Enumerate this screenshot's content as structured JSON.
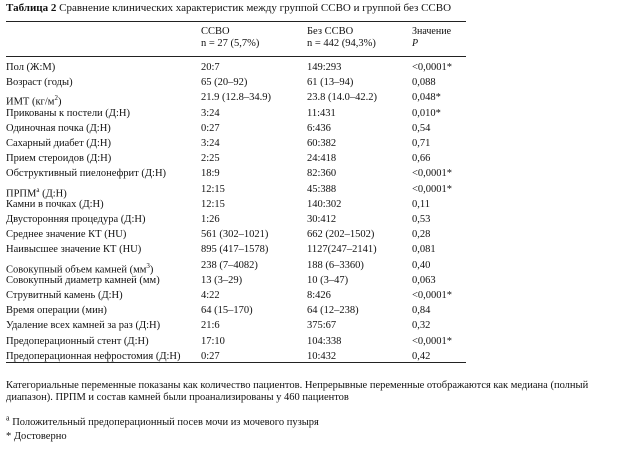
{
  "title": {
    "label": "Таблица 2",
    "text": " Сравнение клинических характеристик между группой ССВО и группой без ССВО"
  },
  "header": {
    "g1_name": "ССВО",
    "g1_n": "n = 27 (5,7%)",
    "g2_name": "Без ССВО",
    "g2_n": "n = 442 (94,3%)",
    "p_label": "Значение",
    "p_symbol": "P"
  },
  "rows": [
    {
      "name": "Пол (Ж:М)",
      "g1": "20:7",
      "g2": "149:293",
      "p": "<0,0001*"
    },
    {
      "name": "Возраст (годы)",
      "g1": "65 (20–92)",
      "g2": "61 (13–94)",
      "p": "0,088"
    },
    {
      "name": "ИМТ (кг/м",
      "sup": "2",
      "name_end": ")",
      "g1": "21.9 (12.8–34.9)",
      "g2": "23.8 (14.0–42.2)",
      "p": "0,048*"
    },
    {
      "name": "Прикованы к постели (Д:Н)",
      "g1": "3:24",
      "g2": "11:431",
      "p": "0,010*"
    },
    {
      "name": "Одиночная почка (Д:Н)",
      "g1": "0:27",
      "g2": "6:436",
      "p": "0,54"
    },
    {
      "name": "Сахарный диабет (Д:Н)",
      "g1": "3:24",
      "g2": "60:382",
      "p": "0,71"
    },
    {
      "name": "Прием стероидов (Д:Н)",
      "g1": "2:25",
      "g2": "24:418",
      "p": "0,66"
    },
    {
      "name": "Обструктивный пиелонефрит (Д:Н)",
      "g1": "18:9",
      "g2": "82:360",
      "p": "<0,0001*"
    },
    {
      "name": "ПРПМ",
      "sup": "a",
      "name_end": " (Д:Н)",
      "g1": "12:15",
      "g2": "45:388",
      "p": "<0,0001*"
    },
    {
      "name": "Камни в почках (Д:Н)",
      "g1": "12:15",
      "g2": "140:302",
      "p": "0,11"
    },
    {
      "name": "Двусторонняя процедура (Д:Н)",
      "g1": "1:26",
      "g2": "30:412",
      "p": "0,53"
    },
    {
      "name": "Среднее значение КТ (HU)",
      "g1": "561 (302–1021)",
      "g2": "662 (202–1502)",
      "p": "0,28"
    },
    {
      "name": "Наивысшее значение КТ (HU)",
      "g1": "895 (417–1578)",
      "g2": "1127(247–2141)",
      "p": "0,081"
    },
    {
      "name": "Совокупный объем камней (мм",
      "sup": "3",
      "name_end": ")",
      "g1": "238 (7–4082)",
      "g2": "188 (6–3360)",
      "p": "0,40"
    },
    {
      "name": "Совокупный диаметр камней (мм)",
      "g1": "13 (3–29)",
      "g2": "10 (3–47)",
      "p": "0,063"
    },
    {
      "name": "Струвитный камень (Д:Н)",
      "g1": "4:22",
      "g2": "8:426",
      "p": "<0,0001*"
    },
    {
      "name": "Время операции (мин)",
      "g1": "64 (15–170)",
      "g2": "64 (12–238)",
      "p": "0,84"
    },
    {
      "name": "Удаление всех камней за раз (Д:Н)",
      "g1": "21:6",
      "g2": "375:67",
      "p": "0,32"
    },
    {
      "name": "Предоперационный стент (Д:Н)",
      "g1": "17:10",
      "g2": "104:338",
      "p": "<0,0001*"
    },
    {
      "name": "Предоперационная нефростомия (Д:Н)",
      "g1": "0:27",
      "g2": "10:432",
      "p": "0,42"
    }
  ],
  "notes": {
    "main": "Категориальные переменные показаны как количество пациентов. Непрерывные переменные отображаются как медиана (полный диапазон). ПРПМ и состав камней были проанализированы у 460 пациентов",
    "a_marker": "a",
    "a_text": " Положительный предоперационный посев мочи из мочевого пузыря",
    "star": "* Достоверно"
  }
}
